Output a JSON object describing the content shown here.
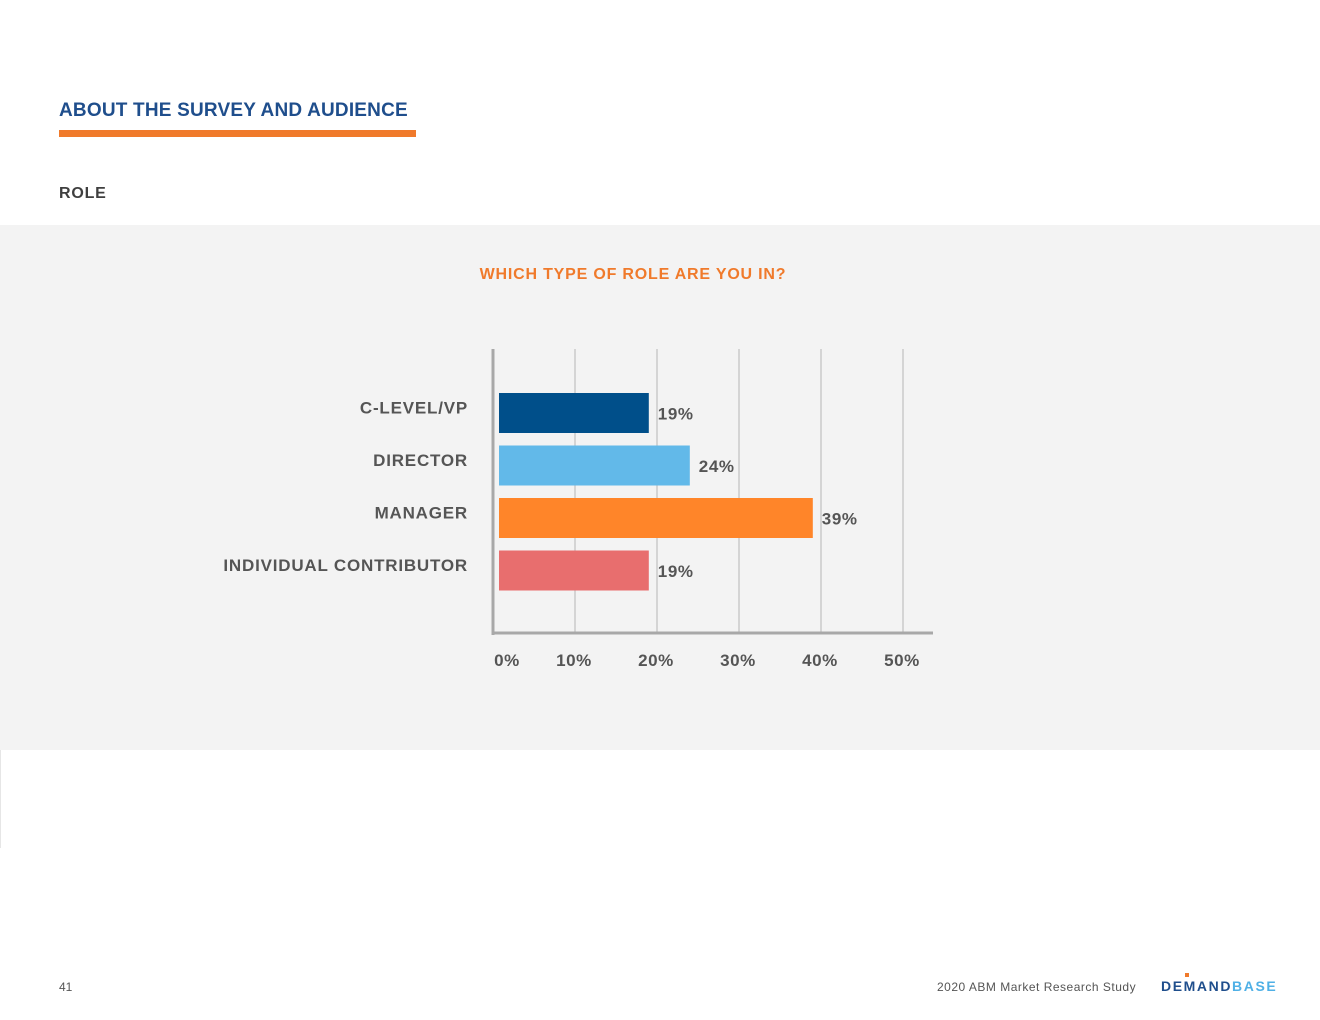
{
  "header": {
    "section_title": "ABOUT THE SURVEY AND AUDIENCE",
    "subsection_title": "ROLE"
  },
  "chart_data": {
    "type": "bar",
    "orientation": "horizontal",
    "title": "WHICH TYPE OF ROLE ARE YOU IN?",
    "categories": [
      "C-LEVEL/VP",
      "DIRECTOR",
      "MANAGER",
      "INDIVIDUAL CONTRIBUTOR"
    ],
    "values": [
      19,
      24,
      39,
      19
    ],
    "value_labels": [
      "19%",
      "24%",
      "39%",
      "19%"
    ],
    "colors": [
      "#004f8a",
      "#62b9e9",
      "#ff8529",
      "#e86e6e"
    ],
    "xlim": [
      0,
      50
    ],
    "xticks": [
      0,
      10,
      20,
      30,
      40,
      50
    ],
    "xtick_labels": [
      "0%",
      "10%",
      "20%",
      "30%",
      "40%",
      "50%"
    ],
    "xlabel": "",
    "ylabel": "",
    "grid": true
  },
  "footer": {
    "page_number": "41",
    "study_title": "2020 ABM Market Research Study",
    "logo_text_part1": "DEMAND",
    "logo_text_part2": "BASE"
  },
  "colors": {
    "heading": "#1f4e8c",
    "accent": "#f07a2b",
    "panel_bg": "#f3f3f3"
  }
}
